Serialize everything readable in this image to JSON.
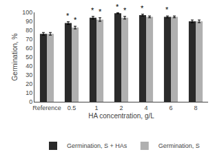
{
  "chart_data": {
    "type": "bar",
    "categories": [
      "Reference",
      "0.5",
      "1",
      "2",
      "4",
      "6",
      "8"
    ],
    "xlabel": "HA concentration, g/L",
    "ylabel": "Germination, %",
    "ylim": [
      0,
      100
    ],
    "yticks": [
      0,
      10,
      20,
      30,
      40,
      50,
      60,
      70,
      80,
      90,
      100
    ],
    "grid": false,
    "legend": "bottom",
    "series": [
      {
        "name": "Germination, S + HAs",
        "color": "#2a2a2a",
        "values": [
          76,
          88,
          94,
          99,
          97,
          95,
          90
        ],
        "errors": [
          1.5,
          1.5,
          1.5,
          0.5,
          1.0,
          1.0,
          1.5
        ],
        "annotations": [
          null,
          "*",
          "*",
          "*",
          "*",
          "*",
          null
        ]
      },
      {
        "name": "Germination, S",
        "color": "#b0b0b0",
        "values": [
          76,
          83,
          92,
          94,
          95,
          95,
          90
        ],
        "errors": [
          1.5,
          1.5,
          2.0,
          1.5,
          1.0,
          1.0,
          1.5
        ],
        "annotations": [
          null,
          "*",
          "*",
          "*",
          null,
          null,
          null
        ]
      }
    ]
  }
}
